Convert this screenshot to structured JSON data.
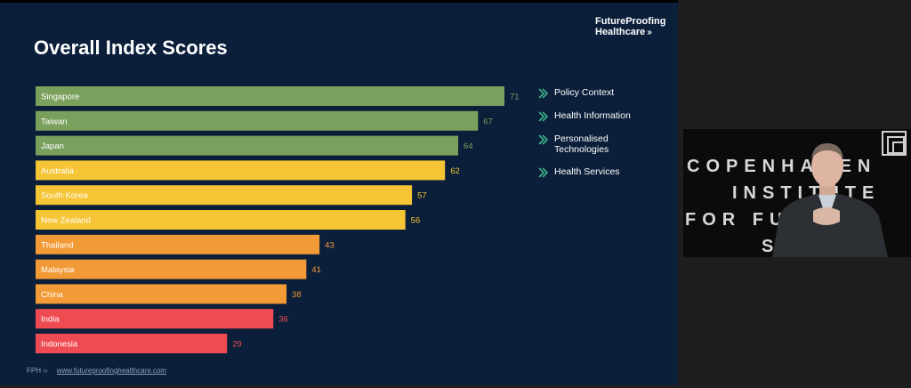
{
  "slide": {
    "title": "Overall Index Scores",
    "brand_line1": "FutureProofing",
    "brand_line2": "Healthcare",
    "brand_chevron": "»",
    "footer_left": "FPH ››",
    "footer_link": "www.futureproofinghealthcare.com"
  },
  "legend": [
    {
      "label": "Policy Context",
      "icon": "chevron-right-double-icon"
    },
    {
      "label": "Health Information",
      "icon": "chevron-right-double-icon"
    },
    {
      "label": "Personalised Technologies",
      "icon": "chevron-right-double-icon"
    },
    {
      "label": "Health Services",
      "icon": "chevron-right-double-icon"
    }
  ],
  "colors": {
    "slide_bg": "#0b1f3a",
    "green": "#7aa05e",
    "yellow": "#f5c535",
    "orange": "#f29a35",
    "red": "#ef4b52",
    "legend_icon": "#3fb28a"
  },
  "video": {
    "line1": "COPENHAGEN",
    "line2": "INSTITUTE",
    "line3": "FOR FUTURES",
    "line4": "S"
  },
  "chart_data": {
    "type": "bar",
    "orientation": "horizontal",
    "categories": [
      "Singapore",
      "Taiwan",
      "Japan",
      "Australia",
      "South Korea",
      "New Zealand",
      "Thailand",
      "Malaysia",
      "China",
      "India",
      "Indonesia"
    ],
    "values": [
      71,
      67,
      64,
      62,
      57,
      56,
      43,
      41,
      38,
      36,
      29
    ],
    "bar_colors": [
      "green",
      "green",
      "green",
      "yellow",
      "yellow",
      "yellow",
      "orange",
      "orange",
      "orange",
      "red",
      "red"
    ],
    "title": "Overall Index Scores",
    "xlabel": "",
    "ylabel": "",
    "xlim": [
      0,
      71
    ]
  }
}
